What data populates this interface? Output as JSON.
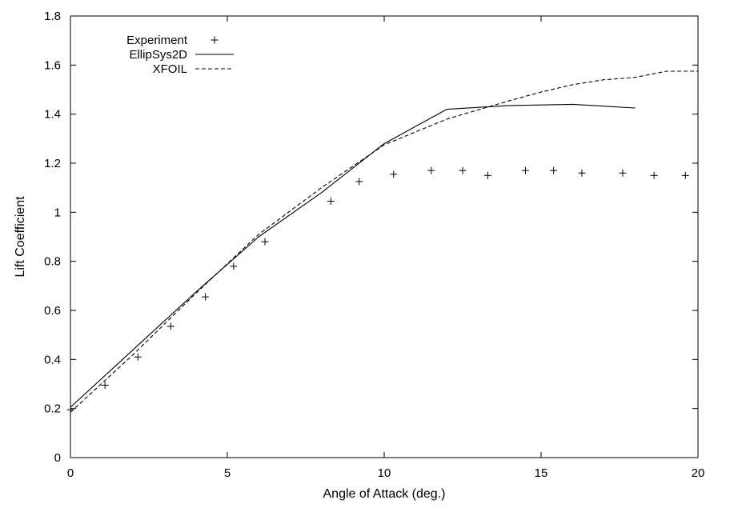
{
  "chart_data": {
    "type": "line",
    "title": "",
    "xlabel": "Angle of Attack (deg.)",
    "ylabel": "Lift Coefficient",
    "xlim": [
      0,
      20
    ],
    "ylim": [
      0,
      1.8
    ],
    "xticks": [
      0,
      5,
      10,
      15,
      20
    ],
    "xtick_labels": [
      "0",
      "5",
      "10",
      "15",
      "20"
    ],
    "yticks": [
      0,
      0.2,
      0.4,
      0.6,
      0.8,
      1,
      1.2,
      1.4,
      1.6,
      1.8
    ],
    "ytick_labels": [
      "0",
      "0.2",
      "0.4",
      "0.6",
      "0.8",
      "1",
      "1.2",
      "1.4",
      "1.6",
      "1.8"
    ],
    "grid": false,
    "legend_position": "top-left",
    "series": [
      {
        "name": "Experiment",
        "style": "plus-markers",
        "color": "#000000",
        "x": [
          0.0,
          1.1,
          2.15,
          3.2,
          4.3,
          5.2,
          6.2,
          8.3,
          9.2,
          10.3,
          11.5,
          12.5,
          13.3,
          14.5,
          15.4,
          16.3,
          17.6,
          18.6,
          19.6
        ],
        "y": [
          0.195,
          0.295,
          0.41,
          0.535,
          0.655,
          0.78,
          0.88,
          1.045,
          1.125,
          1.155,
          1.17,
          1.17,
          1.15,
          1.17,
          1.17,
          1.16,
          1.16,
          1.15,
          1.15
        ]
      },
      {
        "name": "EllipSys2D",
        "style": "solid",
        "color": "#000000",
        "x": [
          0,
          2,
          4,
          6,
          8,
          10,
          12,
          14,
          16,
          18
        ],
        "y": [
          0.205,
          0.44,
          0.675,
          0.9,
          1.08,
          1.28,
          1.42,
          1.435,
          1.44,
          1.425
        ]
      },
      {
        "name": "XFOIL",
        "style": "dashed",
        "color": "#000000",
        "x": [
          0,
          2,
          4,
          6,
          8,
          10,
          12,
          14,
          15,
          16,
          17,
          18,
          19,
          20
        ],
        "y": [
          0.185,
          0.42,
          0.67,
          0.91,
          1.1,
          1.275,
          1.38,
          1.455,
          1.49,
          1.52,
          1.54,
          1.55,
          1.575,
          1.575
        ]
      }
    ]
  }
}
